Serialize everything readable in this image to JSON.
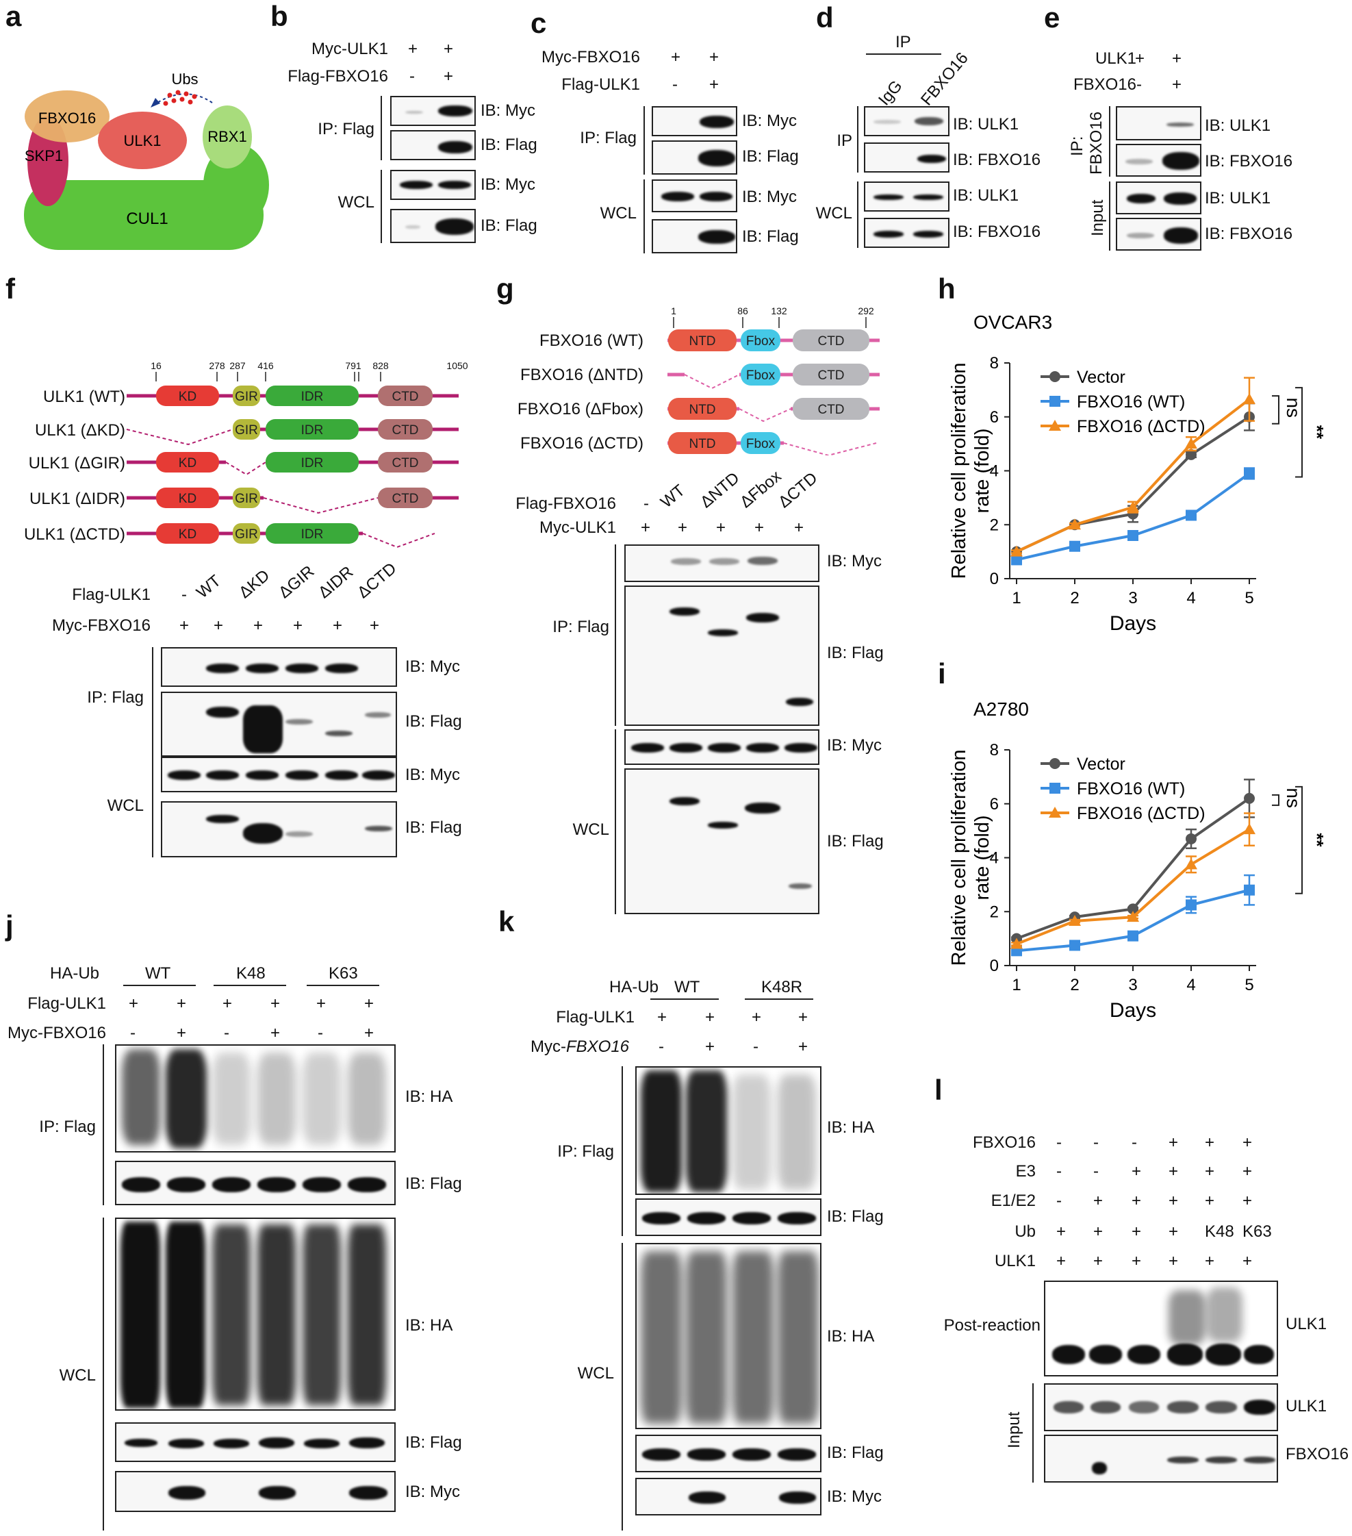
{
  "panels": {
    "a": {
      "letter": "a",
      "labels": {
        "fbxo16": "FBXO16",
        "skp1": "SKP1",
        "ulk1": "ULK1",
        "rbx1": "RBX1",
        "cul1": "CUL1",
        "ubs": "Ubs"
      },
      "colors": {
        "fbxo16": "#e8b06a",
        "skp1": "#c4305f",
        "ulk1": "#e5605a",
        "rbx1": "#a8dc7c",
        "cul1": "#5cc43c"
      }
    },
    "b": {
      "letter": "b",
      "rows": [
        {
          "name": "Myc-ULK1",
          "vals": [
            "+",
            "+"
          ]
        },
        {
          "name": "Flag-FBXO16",
          "vals": [
            "-",
            "+"
          ]
        }
      ],
      "ip": "IP: Flag",
      "wcl": "WCL",
      "ib": [
        "IB: Myc",
        "IB: Flag",
        "IB: Myc",
        "IB: Flag"
      ]
    },
    "c": {
      "letter": "c",
      "rows": [
        {
          "name": "Myc-FBXO16",
          "vals": [
            "+",
            "+"
          ]
        },
        {
          "name": "Flag-ULK1",
          "vals": [
            "-",
            "+"
          ]
        }
      ],
      "ip": "IP: Flag",
      "wcl": "WCL",
      "ib": [
        "IB: Myc",
        "IB: Flag",
        "IB: Myc",
        "IB: Flag"
      ]
    },
    "d": {
      "letter": "d",
      "ip_header": "IP",
      "cols": [
        "IgG",
        "FBXO16"
      ],
      "ip": "IP",
      "wcl": "WCL",
      "ib": [
        "IB: ULK1",
        "IB: FBXO16",
        "IB: ULK1",
        "IB: FBXO16"
      ]
    },
    "e": {
      "letter": "e",
      "rows": [
        {
          "name": "ULK1",
          "vals": [
            "+",
            "+"
          ]
        },
        {
          "name": "FBXO16",
          "vals": [
            "-",
            "+"
          ]
        }
      ],
      "ip": "IP:",
      "ip2": "FBXO16",
      "input": "Input",
      "ib": [
        "IB: ULK1",
        "IB: FBXO16",
        "IB: ULK1",
        "IB: FBXO16"
      ]
    },
    "f": {
      "letter": "f",
      "constructs": [
        "ULK1 (WT)",
        "ULK1 (ΔKD)",
        "ULK1 (ΔGIR)",
        "ULK1 (ΔIDR)",
        "ULK1 (ΔCTD)"
      ],
      "positions": [
        "16",
        "278",
        "287",
        "416",
        "791",
        "828",
        "1050"
      ],
      "domains": {
        "kd": "KD",
        "gir": "GIR",
        "idr": "IDR",
        "ctd": "CTD"
      },
      "rows": [
        {
          "name": "Flag-ULK1",
          "vals": [
            "-",
            "WT",
            "ΔKD",
            "ΔGIR",
            "ΔIDR",
            "ΔCTD"
          ]
        },
        {
          "name": "Myc-FBXO16",
          "vals": [
            "+",
            "+",
            "+",
            "+",
            "+",
            "+"
          ]
        }
      ],
      "ip": "IP: Flag",
      "wcl": "WCL",
      "ib": [
        "IB: Myc",
        "IB: Flag",
        "IB: Myc",
        "IB: Flag"
      ]
    },
    "g": {
      "letter": "g",
      "constructs": [
        "FBXO16 (WT)",
        "FBXO16 (ΔNTD)",
        "FBXO16 (ΔFbox)",
        "FBXO16 (ΔCTD)"
      ],
      "positions": [
        "1",
        "86",
        "132",
        "292"
      ],
      "domains": {
        "ntd": "NTD",
        "fbox": "Fbox",
        "ctd": "CTD"
      },
      "rows": [
        {
          "name": "Flag-FBXO16",
          "vals": [
            "-",
            "WT",
            "ΔNTD",
            "ΔFbox",
            "ΔCTD"
          ]
        },
        {
          "name": "Myc-ULK1",
          "vals": [
            "+",
            "+",
            "+",
            "+",
            "+"
          ]
        }
      ],
      "ip": "IP: Flag",
      "wcl": "WCL",
      "ib": [
        "IB: Myc",
        "IB: Flag",
        "IB: Myc",
        "IB: Flag"
      ]
    },
    "h": {
      "letter": "h"
    },
    "i": {
      "letter": "i"
    },
    "j": {
      "letter": "j",
      "groups": [
        "WT",
        "K48",
        "K63"
      ],
      "rows": [
        {
          "name": "HA-Ub"
        },
        {
          "name": "Flag-ULK1",
          "vals": [
            "+",
            "+",
            "+",
            "+",
            "+",
            "+"
          ]
        },
        {
          "name": "Myc-FBXO16",
          "vals": [
            "-",
            "+",
            "-",
            "+",
            "-",
            "+"
          ]
        }
      ],
      "ip": "IP: Flag",
      "wcl": "WCL",
      "ib": [
        "IB: HA",
        "IB: Flag",
        "IB: HA",
        "IB: Flag",
        "IB: Myc"
      ]
    },
    "k": {
      "letter": "k",
      "groups": [
        "WT",
        "K48R"
      ],
      "rows": [
        {
          "name": "HA-Ub"
        },
        {
          "name": "Flag-ULK1",
          "vals": [
            "+",
            "+",
            "+",
            "+"
          ]
        },
        {
          "name_a": "Myc-",
          "name_b": "FBXO16",
          "vals": [
            "-",
            "+",
            "-",
            "+"
          ]
        }
      ],
      "ip": "IP: Flag",
      "wcl": "WCL",
      "ib": [
        "IB: HA",
        "IB: Flag",
        "IB: HA",
        "IB: Flag",
        "IB: Myc"
      ]
    },
    "l": {
      "letter": "l",
      "rows": [
        {
          "name": "FBXO16",
          "vals": [
            "-",
            "-",
            "-",
            "+",
            "+",
            "+"
          ]
        },
        {
          "name": "E3",
          "vals": [
            "-",
            "-",
            "+",
            "+",
            "+",
            "+"
          ]
        },
        {
          "name": "E1/E2",
          "vals": [
            "-",
            "+",
            "+",
            "+",
            "+",
            "+"
          ]
        },
        {
          "name": "Ub",
          "vals": [
            "+",
            "+",
            "+",
            "+",
            "K48",
            "K63"
          ]
        },
        {
          "name": "ULK1",
          "vals": [
            "+",
            "+",
            "+",
            "+",
            "+",
            "+"
          ]
        }
      ],
      "post": "Post-reaction",
      "input": "Input",
      "ib": [
        "ULK1",
        "ULK1",
        "FBXO16"
      ]
    }
  },
  "chart_data": [
    {
      "type": "line",
      "title": "OVCAR3",
      "xlabel": "Days",
      "ylabel": "Relative cell proliferation rate (fold)",
      "x": [
        1,
        2,
        3,
        4,
        5
      ],
      "xlim": [
        1,
        5
      ],
      "ylim": [
        0,
        8
      ],
      "yticks": [
        0,
        2,
        4,
        6,
        8
      ],
      "legend": "top-left",
      "series": [
        {
          "name": "Vector",
          "color": "#555555",
          "marker": "circle",
          "values": [
            1.0,
            2.0,
            2.4,
            4.6,
            6.0
          ],
          "err": [
            0.05,
            0.05,
            0.3,
            0.1,
            0.5
          ]
        },
        {
          "name": "FBXO16 (WT)",
          "color": "#3a8de0",
          "marker": "square",
          "values": [
            0.7,
            1.2,
            1.6,
            2.35,
            3.9
          ],
          "err": [
            0.05,
            0.05,
            0.1,
            0.15,
            0.2
          ]
        },
        {
          "name": "FBXO16 (ΔCTD)",
          "color": "#f08a1c",
          "marker": "triangle",
          "values": [
            1.0,
            2.0,
            2.65,
            5.0,
            6.65
          ],
          "err": [
            0.05,
            0.05,
            0.2,
            0.25,
            0.8
          ]
        }
      ],
      "annotations": [
        "ns",
        "**"
      ]
    },
    {
      "type": "line",
      "title": "A2780",
      "xlabel": "Days",
      "ylabel": "Relative cell proliferation rate (fold)",
      "x": [
        1,
        2,
        3,
        4,
        5
      ],
      "xlim": [
        1,
        5
      ],
      "ylim": [
        0,
        8
      ],
      "yticks": [
        0,
        2,
        4,
        6,
        8
      ],
      "legend": "top-left",
      "series": [
        {
          "name": "Vector",
          "color": "#555555",
          "marker": "circle",
          "values": [
            1.0,
            1.8,
            2.1,
            4.7,
            6.2
          ],
          "err": [
            0.05,
            0.05,
            0.05,
            0.35,
            0.7
          ]
        },
        {
          "name": "FBXO16 (WT)",
          "color": "#3a8de0",
          "marker": "square",
          "values": [
            0.55,
            0.75,
            1.1,
            2.25,
            2.8
          ],
          "err": [
            0.05,
            0.05,
            0.05,
            0.3,
            0.55
          ]
        },
        {
          "name": "FBXO16 (ΔCTD)",
          "color": "#f08a1c",
          "marker": "triangle",
          "values": [
            0.8,
            1.65,
            1.8,
            3.75,
            5.05
          ],
          "err": [
            0.05,
            0.05,
            0.05,
            0.3,
            0.6
          ]
        }
      ],
      "annotations": [
        "ns",
        "**"
      ]
    }
  ]
}
